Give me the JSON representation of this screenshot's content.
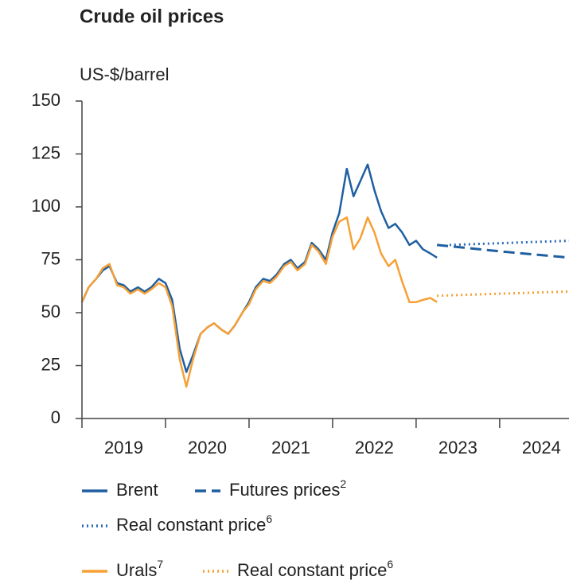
{
  "chart_data": {
    "type": "line",
    "title": "Crude oil prices",
    "y_label": "US-$/barrel",
    "xlim": [
      2019,
      2024.83
    ],
    "xticks": [
      2019,
      2020,
      2021,
      2022,
      2023,
      2024
    ],
    "ylim": [
      0,
      150
    ],
    "yticks": [
      0,
      25,
      50,
      75,
      100,
      125,
      150
    ],
    "series": [
      {
        "name": "Brent",
        "color": "#1f5fa0",
        "style": "solid",
        "x": [
          2019.0,
          2019.08,
          2019.17,
          2019.25,
          2019.33,
          2019.42,
          2019.5,
          2019.58,
          2019.67,
          2019.75,
          2019.83,
          2019.92,
          2020.0,
          2020.08,
          2020.17,
          2020.25,
          2020.33,
          2020.42,
          2020.5,
          2020.58,
          2020.67,
          2020.75,
          2020.83,
          2020.92,
          2021.0,
          2021.08,
          2021.17,
          2021.25,
          2021.33,
          2021.42,
          2021.5,
          2021.58,
          2021.67,
          2021.75,
          2021.83,
          2021.92,
          2022.0,
          2022.08,
          2022.17,
          2022.25,
          2022.33,
          2022.42,
          2022.5,
          2022.58,
          2022.67,
          2022.75,
          2022.83,
          2022.92,
          2023.0,
          2023.08,
          2023.17,
          2023.25
        ],
        "values": [
          55,
          62,
          66,
          70,
          72,
          64,
          63,
          60,
          62,
          60,
          62,
          66,
          64,
          56,
          33,
          22,
          30,
          40,
          43,
          45,
          42,
          40,
          44,
          50,
          55,
          62,
          66,
          65,
          68,
          73,
          75,
          71,
          74,
          83,
          80,
          75,
          88,
          97,
          118,
          105,
          112,
          120,
          108,
          98,
          90,
          92,
          88,
          82,
          84,
          80,
          78,
          76
        ]
      },
      {
        "name": "Futures prices",
        "footnote": "2",
        "color": "#1f5fa0",
        "style": "dashed",
        "x": [
          2023.25,
          2023.5,
          2024,
          2024.83
        ],
        "values": [
          82,
          81,
          79,
          76
        ]
      },
      {
        "name": "Real constant price",
        "footnote": "6",
        "color": "#2a6ab8",
        "style": "dotted",
        "x": [
          2023.4,
          2024.83
        ],
        "values": [
          82,
          84
        ]
      },
      {
        "name": "Urals",
        "footnote": "7",
        "color": "#f7a035",
        "style": "solid",
        "x": [
          2019.0,
          2019.08,
          2019.17,
          2019.25,
          2019.33,
          2019.42,
          2019.5,
          2019.58,
          2019.67,
          2019.75,
          2019.83,
          2019.92,
          2020.0,
          2020.08,
          2020.17,
          2020.25,
          2020.33,
          2020.42,
          2020.5,
          2020.58,
          2020.67,
          2020.75,
          2020.83,
          2020.92,
          2021.0,
          2021.08,
          2021.17,
          2021.25,
          2021.33,
          2021.42,
          2021.5,
          2021.58,
          2021.67,
          2021.75,
          2021.83,
          2021.92,
          2022.0,
          2022.08,
          2022.17,
          2022.25,
          2022.33,
          2022.42,
          2022.5,
          2022.58,
          2022.67,
          2022.75,
          2022.83,
          2022.92,
          2023.0,
          2023.08,
          2023.17,
          2023.25
        ],
        "values": [
          55,
          62,
          66,
          71,
          73,
          63,
          62,
          59,
          61,
          59,
          61,
          64,
          62,
          53,
          28,
          15,
          28,
          40,
          43,
          45,
          42,
          40,
          44,
          50,
          54,
          61,
          65,
          64,
          67,
          72,
          74,
          70,
          73,
          82,
          79,
          73,
          86,
          93,
          95,
          80,
          85,
          95,
          88,
          78,
          72,
          75,
          65,
          55,
          55,
          56,
          57,
          55
        ]
      },
      {
        "name": "Real constant price",
        "footnote": "6",
        "color": "#f7a035",
        "style": "dotted",
        "x": [
          2023.25,
          2024.83
        ],
        "values": [
          58,
          60
        ]
      }
    ]
  }
}
